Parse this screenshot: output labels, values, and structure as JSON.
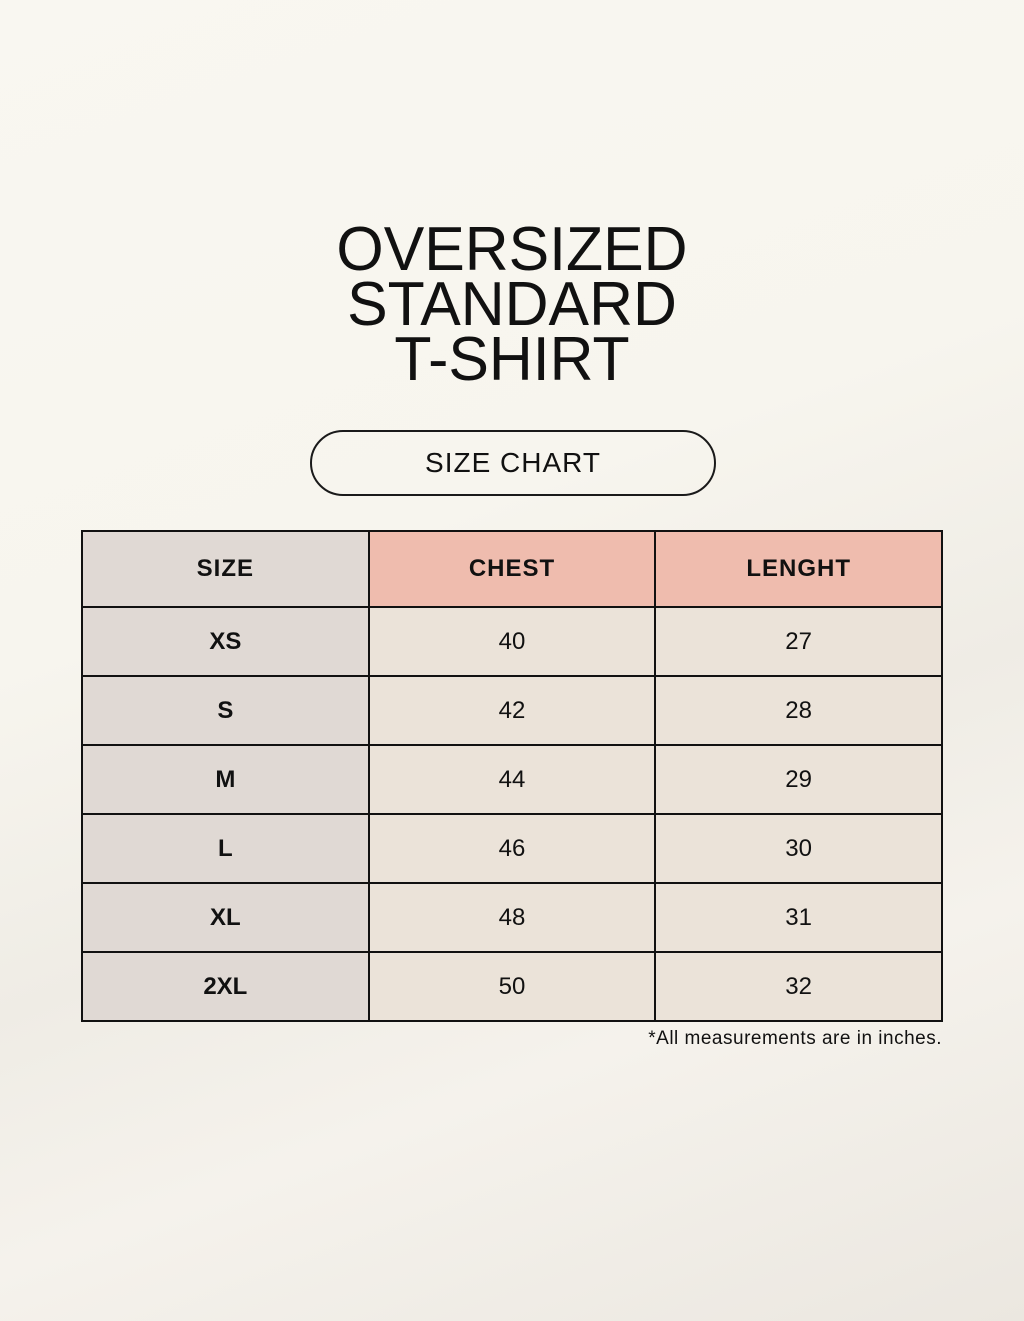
{
  "title": {
    "lines": [
      "OVERSIZED",
      "STANDARD",
      "T-SHIRT"
    ]
  },
  "badge": "SIZE CHART",
  "table": {
    "headers": [
      "SIZE",
      "CHEST",
      "LENGHT"
    ],
    "rows": [
      [
        "XS",
        "40",
        "27"
      ],
      [
        "S",
        "42",
        "28"
      ],
      [
        "M",
        "44",
        "29"
      ],
      [
        "L",
        "46",
        "30"
      ],
      [
        "XL",
        "48",
        "31"
      ],
      [
        "2XL",
        "50",
        "32"
      ]
    ]
  },
  "note": "*All measurements are in inches.",
  "colors": {
    "size_column": "#e0d9d4",
    "header_accent": "#efbcae",
    "cell": "#ebe3d9",
    "background": "#f8f6f0"
  }
}
